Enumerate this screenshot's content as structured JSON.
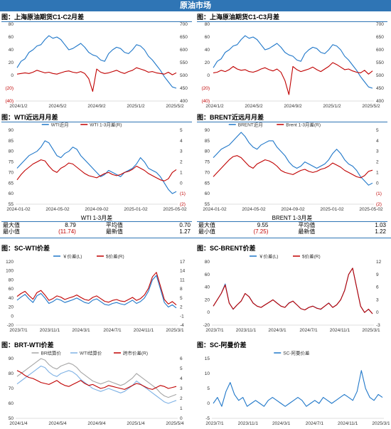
{
  "header": {
    "title": "原油市场"
  },
  "panels": [
    {
      "id": "p1",
      "title": "图：上海原油期货C1-C2月差"
    },
    {
      "id": "p2",
      "title": "图：上海原油期货C1-C3月差"
    },
    {
      "id": "p3",
      "title": "图：WTI近远月月差"
    },
    {
      "id": "p4",
      "title": "图：BRENT近远月月差"
    },
    {
      "id": "p5",
      "title": "图：SC-WTI价差"
    },
    {
      "id": "p6",
      "title": "图：SC-BRENT价差"
    },
    {
      "id": "p7",
      "title": "图：BRT-WTI价差"
    },
    {
      "id": "p8",
      "title": "图：SC-阿曼价差"
    }
  ],
  "stats": {
    "wti": {
      "title": "WTI 1-3月差",
      "max_label": "最大值",
      "max_value": "8.79",
      "avg_label": "平均值",
      "avg_value": "0.70",
      "min_label": "最小值",
      "min_value": "(11.74)",
      "latest_label": "最新值",
      "latest_value": "1.27"
    },
    "brent": {
      "title": "BRENT 1-3月差",
      "max_label": "最大值",
      "max_value": "9.55",
      "avg_label": "平均值",
      "avg_value": "1.03",
      "min_label": "最小值",
      "min_value": "(7.25)",
      "latest_label": "最新值",
      "latest_value": "1.22"
    }
  },
  "colors": {
    "blue": "#1f77c9",
    "red": "#c00000",
    "gray": "#a6a6a6",
    "light_blue": "#7fb2e5",
    "accent": "#2f75b5"
  },
  "chart_data": [
    {
      "id": "p1",
      "type": "line",
      "xticks": [
        "2024/1/2",
        "2024/5/2",
        "2024/9/2",
        "2025/1/2",
        "2025/5/2"
      ],
      "left_ticks": [
        "80",
        "60",
        "40",
        "20",
        "0",
        "(20)",
        "(40)"
      ],
      "right_ticks": [
        "700",
        "650",
        "600",
        "550",
        "500",
        "450",
        "400"
      ],
      "ylim_left": [
        -40,
        80
      ],
      "ylim_right": [
        400,
        700
      ],
      "series": [
        {
          "axis": "right",
          "color": "#1f77c9",
          "values": [
            530,
            555,
            565,
            590,
            600,
            615,
            620,
            640,
            655,
            645,
            650,
            640,
            620,
            600,
            605,
            615,
            625,
            610,
            590,
            580,
            575,
            560,
            555,
            585,
            600,
            610,
            605,
            590,
            585,
            600,
            620,
            615,
            600,
            575,
            560,
            540,
            520,
            495,
            475,
            455,
            450
          ]
        },
        {
          "axis": "left",
          "color": "#c00000",
          "values": [
            2,
            3,
            4,
            3,
            5,
            8,
            6,
            4,
            5,
            3,
            2,
            4,
            6,
            7,
            5,
            4,
            6,
            3,
            -5,
            -25,
            10,
            5,
            3,
            4,
            6,
            8,
            5,
            3,
            6,
            8,
            12,
            10,
            8,
            5,
            6,
            4,
            3,
            2,
            5,
            1,
            4
          ]
        }
      ]
    },
    {
      "id": "p2",
      "type": "line",
      "xticks": [
        "2024/1/2",
        "2024/5/2",
        "2024/9/2",
        "2025/1/2",
        "2025/5/2"
      ],
      "left_ticks": [
        "80",
        "60",
        "40",
        "20",
        "0",
        "(20)",
        "(40)"
      ],
      "right_ticks": [
        "700",
        "650",
        "600",
        "550",
        "500",
        "450",
        "400"
      ],
      "ylim_left": [
        -40,
        80
      ],
      "ylim_right": [
        400,
        700
      ],
      "series": [
        {
          "axis": "right",
          "color": "#1f77c9",
          "values": [
            530,
            555,
            565,
            590,
            600,
            615,
            620,
            640,
            655,
            645,
            650,
            640,
            620,
            600,
            605,
            615,
            625,
            610,
            590,
            580,
            575,
            560,
            555,
            585,
            600,
            610,
            605,
            590,
            585,
            600,
            620,
            615,
            600,
            575,
            560,
            540,
            520,
            495,
            475,
            455,
            450
          ]
        },
        {
          "axis": "left",
          "color": "#c00000",
          "values": [
            4,
            5,
            8,
            6,
            9,
            14,
            10,
            8,
            9,
            6,
            5,
            7,
            10,
            12,
            9,
            7,
            10,
            5,
            -8,
            -30,
            14,
            9,
            6,
            8,
            10,
            13,
            9,
            6,
            10,
            14,
            20,
            17,
            13,
            9,
            10,
            7,
            5,
            4,
            8,
            2,
            7
          ]
        }
      ]
    },
    {
      "id": "p3",
      "type": "line",
      "xticks": [
        "2024-01-02",
        "2024-05-02",
        "2024-09-02",
        "2025-01-02",
        "2025-05-02"
      ],
      "left_ticks": [
        "90",
        "85",
        "80",
        "75",
        "70",
        "65",
        "60",
        "55"
      ],
      "right_ticks": [
        "5",
        "4",
        "3",
        "2",
        "1",
        "0",
        "(1)",
        "(2)"
      ],
      "ylim_left": [
        55,
        90
      ],
      "ylim_right": [
        -2,
        5
      ],
      "legend": [
        "WTI近月",
        "WTI 1-3月差(R)"
      ],
      "series": [
        {
          "name": "WTI近月",
          "axis": "left",
          "color": "#1f77c9",
          "values": [
            72,
            74,
            76,
            78,
            79,
            80,
            82,
            85,
            84,
            81,
            78,
            77,
            79,
            80,
            82,
            81,
            78,
            76,
            74,
            72,
            70,
            68,
            69,
            71,
            70,
            69,
            68,
            70,
            71,
            72,
            74,
            77,
            75,
            72,
            71,
            70,
            68,
            65,
            62,
            60,
            61
          ]
        },
        {
          "name": "WTI 1-3月差(R)",
          "axis": "right",
          "color": "#c00000",
          "values": [
            0.3,
            0.8,
            1.2,
            1.5,
            1.8,
            2.0,
            2.2,
            2.1,
            1.6,
            1.2,
            1.0,
            1.4,
            1.6,
            1.9,
            1.8,
            1.5,
            1.2,
            0.9,
            0.7,
            0.6,
            0.5,
            0.7,
            0.9,
            1.0,
            0.8,
            0.7,
            0.8,
            1.0,
            1.1,
            1.3,
            1.6,
            1.4,
            1.2,
            0.9,
            0.7,
            0.5,
            0.3,
            0.2,
            0.4,
            1.0,
            1.27
          ]
        }
      ]
    },
    {
      "id": "p4",
      "type": "line",
      "xticks": [
        "2024-01-02",
        "2024-05-02",
        "2024-09-02",
        "2025-01-02",
        "2025-05-02"
      ],
      "left_ticks": [
        "90",
        "85",
        "80",
        "75",
        "70",
        "65",
        "60",
        "55"
      ],
      "right_ticks": [
        "5",
        "4",
        "3",
        "2",
        "1",
        "0",
        "(1)",
        "(2)"
      ],
      "ylim_left": [
        55,
        90
      ],
      "ylim_right": [
        -2,
        5
      ],
      "legend": [
        "BRENT近月",
        "Brent 1-3月差(R)"
      ],
      "series": [
        {
          "name": "BRENT近月",
          "axis": "left",
          "color": "#1f77c9",
          "values": [
            77,
            79,
            81,
            82,
            83,
            85,
            87,
            89,
            87,
            84,
            82,
            81,
            83,
            84,
            85,
            85,
            82,
            80,
            78,
            75,
            73,
            72,
            73,
            75,
            74,
            73,
            72,
            73,
            74,
            76,
            79,
            81,
            79,
            76,
            74,
            73,
            71,
            68,
            66,
            64,
            65
          ]
        },
        {
          "name": "Brent 1-3月差(R)",
          "axis": "right",
          "color": "#c00000",
          "values": [
            0.6,
            1.0,
            1.4,
            1.8,
            2.2,
            2.5,
            2.6,
            2.4,
            2.0,
            1.6,
            1.4,
            1.8,
            2.0,
            2.2,
            2.1,
            1.9,
            1.6,
            1.2,
            1.0,
            0.9,
            0.8,
            1.0,
            1.2,
            1.3,
            1.1,
            1.0,
            1.1,
            1.3,
            1.4,
            1.6,
            1.9,
            1.7,
            1.5,
            1.2,
            1.0,
            0.8,
            0.6,
            0.5,
            0.7,
            1.1,
            1.22
          ]
        }
      ]
    },
    {
      "id": "p5",
      "type": "line",
      "xticks": [
        "2023/7/1",
        "2023/11/1",
        "2024/3/1",
        "2024/7/1",
        "2024/11/1",
        "2025/3/1"
      ],
      "left_ticks": [
        "120",
        "100",
        "80",
        "60",
        "40",
        "20",
        "0",
        "-20"
      ],
      "right_ticks": [
        "17",
        "14",
        "11",
        "8",
        "5",
        "2",
        "-1",
        "-4"
      ],
      "ylim_left": [
        -20,
        120
      ],
      "ylim_right": [
        -4,
        17
      ],
      "legend": [
        "￥价差(L)",
        "$价差(R)"
      ],
      "series": [
        {
          "name": "￥价差(L)",
          "axis": "left",
          "color": "#1f77c9",
          "values": [
            35,
            42,
            48,
            38,
            30,
            45,
            50,
            40,
            28,
            32,
            38,
            35,
            30,
            33,
            36,
            40,
            35,
            30,
            28,
            35,
            38,
            32,
            26,
            24,
            28,
            30,
            27,
            25,
            30,
            35,
            28,
            32,
            40,
            55,
            80,
            90,
            60,
            30,
            20,
            25,
            18
          ]
        },
        {
          "name": "$价差(R)",
          "axis": "right",
          "color": "#c00000",
          "values": [
            5.5,
            6.5,
            7.2,
            5.8,
            4.6,
            6.8,
            7.5,
            6.0,
            4.2,
            4.8,
            5.7,
            5.3,
            4.5,
            5.0,
            5.4,
            6.0,
            5.2,
            4.5,
            4.2,
            5.2,
            5.7,
            4.8,
            3.9,
            3.6,
            4.2,
            4.5,
            4.0,
            3.8,
            4.5,
            5.2,
            4.2,
            4.8,
            6.0,
            8.2,
            12.0,
            13.5,
            9.0,
            4.5,
            3.0,
            3.8,
            2.7
          ]
        }
      ]
    },
    {
      "id": "p6",
      "type": "line",
      "xticks": [
        "2023/7/1",
        "2023/11/1",
        "2024/3/1",
        "2024/7/1",
        "2024/11/1",
        "2025/3/1"
      ],
      "left_ticks": [
        "80",
        "60",
        "40",
        "20",
        "0",
        "-20"
      ],
      "right_ticks": [
        "12",
        "9",
        "6",
        "3",
        "0",
        "-3"
      ],
      "ylim_left": [
        -20,
        80
      ],
      "ylim_right": [
        -3,
        12
      ],
      "legend": [
        "￥价差(L)",
        "$价差(R)"
      ],
      "series": [
        {
          "name": "￥价差(L)",
          "axis": "left",
          "color": "#1f77c9",
          "values": [
            10,
            20,
            30,
            45,
            15,
            5,
            12,
            18,
            30,
            25,
            15,
            10,
            8,
            12,
            16,
            20,
            15,
            10,
            8,
            15,
            18,
            12,
            6,
            4,
            8,
            10,
            7,
            5,
            10,
            15,
            8,
            12,
            20,
            35,
            60,
            70,
            40,
            10,
            0,
            5,
            -2
          ]
        },
        {
          "name": "$价差(R)",
          "axis": "right",
          "color": "#c00000",
          "values": [
            1.5,
            3.0,
            4.5,
            6.5,
            2.2,
            0.8,
            1.8,
            2.7,
            4.5,
            3.7,
            2.2,
            1.5,
            1.2,
            1.8,
            2.4,
            3.0,
            2.2,
            1.5,
            1.2,
            2.2,
            2.7,
            1.8,
            0.9,
            0.6,
            1.2,
            1.5,
            1.0,
            0.8,
            1.5,
            2.2,
            1.2,
            1.8,
            3.0,
            5.2,
            9.0,
            10.5,
            6.0,
            1.5,
            0.0,
            0.8,
            -0.3
          ]
        }
      ]
    },
    {
      "id": "p7",
      "type": "line",
      "xticks": [
        "2024/1/4",
        "2024/5/4",
        "2024/9/4",
        "2025/1/4",
        "2025/5/4"
      ],
      "left_ticks": [
        "90",
        "80",
        "70",
        "60",
        "50"
      ],
      "right_ticks": [
        "6",
        "5",
        "4",
        "3",
        "2",
        "1",
        "0"
      ],
      "ylim_left": [
        50,
        90
      ],
      "ylim_right": [
        0,
        6
      ],
      "legend": [
        "BR结算价",
        "WTI结算价",
        "跨市价差(R)"
      ],
      "series": [
        {
          "name": "BR结算价",
          "axis": "left",
          "color": "#a6a6a6",
          "values": [
            78,
            80,
            82,
            84,
            86,
            88,
            90,
            89,
            86,
            84,
            83,
            85,
            86,
            87,
            86,
            84,
            81,
            79,
            77,
            75,
            74,
            73,
            74,
            75,
            74,
            73,
            72,
            73,
            75,
            77,
            80,
            78,
            76,
            74,
            72,
            70,
            67,
            65,
            64,
            65,
            66
          ]
        },
        {
          "name": "WTI结算价",
          "axis": "left",
          "color": "#7fb2e5",
          "values": [
            73,
            75,
            77,
            79,
            81,
            83,
            85,
            84,
            81,
            79,
            78,
            80,
            81,
            82,
            81,
            79,
            76,
            74,
            72,
            70,
            69,
            68,
            69,
            70,
            69,
            68,
            67,
            68,
            70,
            72,
            75,
            73,
            71,
            69,
            67,
            65,
            63,
            61,
            60,
            61,
            62
          ]
        },
        {
          "name": "跨市价差(R)",
          "axis": "right",
          "color": "#c00000",
          "values": [
            4.8,
            4.6,
            4.3,
            4.1,
            4.0,
            3.8,
            3.6,
            3.5,
            3.4,
            3.6,
            3.8,
            3.5,
            3.3,
            3.2,
            3.4,
            3.6,
            3.8,
            3.5,
            3.3,
            3.4,
            3.2,
            3.0,
            3.1,
            3.3,
            3.2,
            3.1,
            3.0,
            2.9,
            3.1,
            3.3,
            3.5,
            3.4,
            3.2,
            3.0,
            2.9,
            3.1,
            3.3,
            3.2,
            3.0,
            3.1,
            3.2
          ]
        }
      ]
    },
    {
      "id": "p8",
      "type": "line",
      "xticks": [
        "2023/7/1",
        "2023/11/1",
        "2024/3/1",
        "2024/7/1",
        "2024/11/1",
        "2025/3/1"
      ],
      "left_ticks": [
        "15",
        "10",
        "5",
        "0",
        "-5"
      ],
      "ylim_left": [
        -5,
        15
      ],
      "legend": [
        "SC-阿曼价差"
      ],
      "series": [
        {
          "name": "SC-阿曼价差",
          "axis": "left",
          "color": "#1f77c9",
          "values": [
            0,
            2,
            -1,
            4,
            7,
            3,
            1,
            2,
            -1,
            0,
            1,
            0,
            -1,
            1,
            2,
            1,
            0,
            -1,
            0,
            1,
            2,
            1,
            -1,
            0,
            1,
            0,
            2,
            1,
            0,
            1,
            2,
            3,
            2,
            1,
            4,
            11,
            5,
            2,
            1,
            3,
            2
          ]
        }
      ]
    }
  ]
}
